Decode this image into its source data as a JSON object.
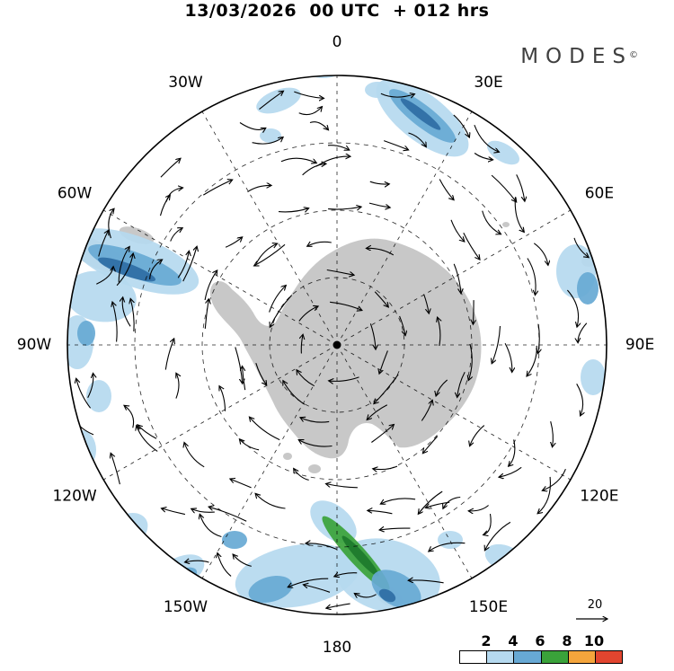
{
  "title": "13/03/2026  00 UTC  + 012 hrs",
  "logo": {
    "text": "MODES",
    "mark": "©"
  },
  "map": {
    "meridians": [
      {
        "label": "0",
        "deg": 0
      },
      {
        "label": "30E",
        "deg": 30
      },
      {
        "label": "60E",
        "deg": 60
      },
      {
        "label": "90E",
        "deg": 90
      },
      {
        "label": "120E",
        "deg": 120
      },
      {
        "label": "150E",
        "deg": 150
      },
      {
        "label": "180",
        "deg": 180
      },
      {
        "label": "150W",
        "deg": 210
      },
      {
        "label": "120W",
        "deg": 240
      },
      {
        "label": "90W",
        "deg": 270
      },
      {
        "label": "60W",
        "deg": 300
      },
      {
        "label": "30W",
        "deg": 330
      }
    ]
  },
  "legend": {
    "wind_ref": {
      "label": "20"
    },
    "colorbar": {
      "ticks": [
        "2",
        "4",
        "6",
        "8",
        "10"
      ],
      "cells": [
        "#ffffff",
        "#b5d9ef",
        "#67a9d4",
        "#3aa23a",
        "#f4a53c",
        "#e1452f"
      ]
    }
  },
  "palette": {
    "land": "#c8c8c8",
    "shade_light": "#b5d9ef",
    "shade_medium": "#67a9d4",
    "shade_dark": "#2e6da4",
    "shade_green": "#3aa23a",
    "shade_green_dark": "#1d7a2c",
    "arrow": "#000000"
  }
}
